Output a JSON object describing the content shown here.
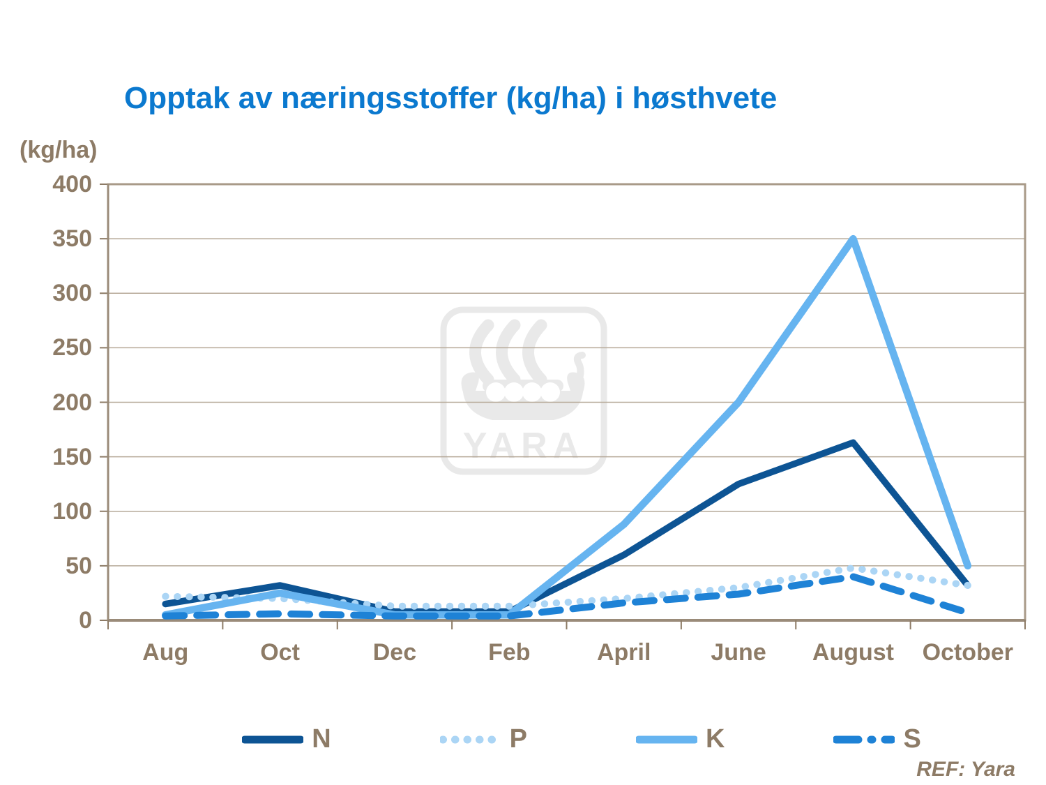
{
  "title": "Opptak av næringsstoffer (kg/ha) i høsthvete",
  "y_axis_unit": "(kg/ha)",
  "ref_note": "REF: Yara",
  "watermark_text": "YARA",
  "colors": {
    "title": "#0b79cf",
    "axis_text": "#8d7b66",
    "grid": "#b6a998",
    "frame": "#a89a88",
    "axis": "#9a8b79",
    "tick": "#8d7b66",
    "watermark": "#e9e9e9",
    "series_n": "#0d5494",
    "series_p": "#abd5f5",
    "series_k": "#66b4f0",
    "series_s": "#1e82d6"
  },
  "chart_data": {
    "type": "line",
    "title": "Opptak av næringsstoffer (kg/ha) i høsthvete",
    "ylabel": "(kg/ha)",
    "categories": [
      "Aug",
      "Oct",
      "Dec",
      "Feb",
      "April",
      "June",
      "August",
      "October"
    ],
    "series": [
      {
        "name": "N",
        "color": "#0d5494",
        "style": "solid",
        "values": [
          15,
          32,
          8,
          8,
          60,
          125,
          163,
          32
        ]
      },
      {
        "name": "P",
        "color": "#abd5f5",
        "style": "dotted",
        "values": [
          22,
          20,
          13,
          13,
          20,
          30,
          48,
          32
        ]
      },
      {
        "name": "K",
        "color": "#66b4f0",
        "style": "solid",
        "values": [
          5,
          25,
          5,
          5,
          88,
          200,
          350,
          50
        ]
      },
      {
        "name": "S",
        "color": "#1e82d6",
        "style": "dashed",
        "values": [
          4,
          6,
          4,
          4,
          16,
          24,
          40,
          7
        ]
      }
    ],
    "ylim": [
      0,
      400
    ],
    "y_ticks": [
      0,
      50,
      100,
      150,
      200,
      250,
      300,
      350,
      400
    ],
    "grid": true,
    "legend_position": "bottom"
  }
}
